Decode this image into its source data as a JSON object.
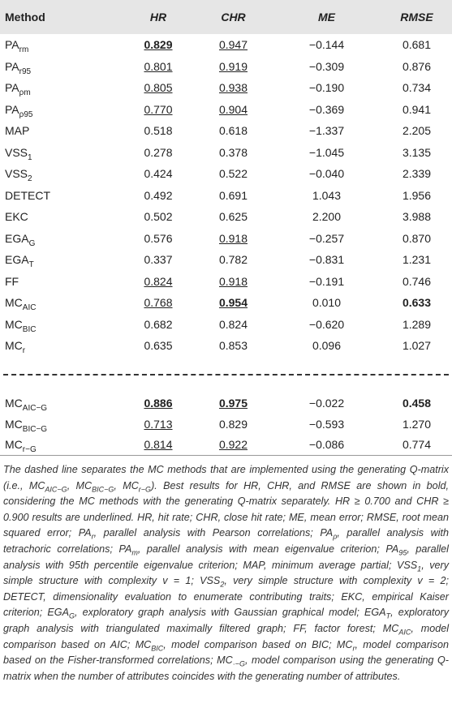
{
  "table": {
    "header": [
      "Method",
      "HR",
      "CHR",
      "ME",
      "RMSE"
    ],
    "rows": [
      {
        "method": {
          "base": "PA",
          "sub": "rm"
        },
        "cells": [
          {
            "text": "0.829",
            "bold": true,
            "underline": true
          },
          {
            "text": "0.947",
            "underline": true
          },
          {
            "text": "−0.144"
          },
          {
            "text": "0.681"
          }
        ]
      },
      {
        "method": {
          "base": "PA",
          "sub": "r95"
        },
        "cells": [
          {
            "text": "0.801",
            "underline": true
          },
          {
            "text": "0.919",
            "underline": true
          },
          {
            "text": "−0.309"
          },
          {
            "text": "0.876"
          }
        ]
      },
      {
        "method": {
          "base": "PA",
          "sub": "ρm"
        },
        "cells": [
          {
            "text": "0.805",
            "underline": true
          },
          {
            "text": "0.938",
            "underline": true
          },
          {
            "text": "−0.190"
          },
          {
            "text": "0.734"
          }
        ]
      },
      {
        "method": {
          "base": "PA",
          "sub": "ρ95"
        },
        "cells": [
          {
            "text": "0.770",
            "underline": true
          },
          {
            "text": "0.904",
            "underline": true
          },
          {
            "text": "−0.369"
          },
          {
            "text": "0.941"
          }
        ]
      },
      {
        "method": {
          "base": "MAP"
        },
        "cells": [
          {
            "text": "0.518"
          },
          {
            "text": "0.618"
          },
          {
            "text": "−1.337"
          },
          {
            "text": "2.205"
          }
        ]
      },
      {
        "method": {
          "base": "VSS",
          "sub": "1"
        },
        "cells": [
          {
            "text": "0.278"
          },
          {
            "text": "0.378"
          },
          {
            "text": "−1.045"
          },
          {
            "text": "3.135"
          }
        ]
      },
      {
        "method": {
          "base": "VSS",
          "sub": "2"
        },
        "cells": [
          {
            "text": "0.424"
          },
          {
            "text": "0.522"
          },
          {
            "text": "−0.040"
          },
          {
            "text": "2.339"
          }
        ]
      },
      {
        "method": {
          "base": "DETECT"
        },
        "cells": [
          {
            "text": "0.492"
          },
          {
            "text": "0.691"
          },
          {
            "text": "1.043"
          },
          {
            "text": "1.956"
          }
        ]
      },
      {
        "method": {
          "base": "EKC"
        },
        "cells": [
          {
            "text": "0.502"
          },
          {
            "text": "0.625"
          },
          {
            "text": "2.200"
          },
          {
            "text": "3.988"
          }
        ]
      },
      {
        "method": {
          "base": "EGA",
          "sub": "G"
        },
        "cells": [
          {
            "text": "0.576"
          },
          {
            "text": "0.918",
            "underline": true
          },
          {
            "text": "−0.257"
          },
          {
            "text": "0.870"
          }
        ]
      },
      {
        "method": {
          "base": "EGA",
          "sub": "T"
        },
        "cells": [
          {
            "text": "0.337"
          },
          {
            "text": "0.782"
          },
          {
            "text": "−0.831"
          },
          {
            "text": "1.231"
          }
        ]
      },
      {
        "method": {
          "base": "FF"
        },
        "cells": [
          {
            "text": "0.824",
            "underline": true
          },
          {
            "text": "0.918",
            "underline": true
          },
          {
            "text": "−0.191"
          },
          {
            "text": "0.746"
          }
        ]
      },
      {
        "method": {
          "base": "MC",
          "sub": "AIC"
        },
        "cells": [
          {
            "text": "0.768",
            "underline": true
          },
          {
            "text": "0.954",
            "bold": true,
            "underline": true
          },
          {
            "text": "0.010"
          },
          {
            "text": "0.633",
            "bold": true
          }
        ]
      },
      {
        "method": {
          "base": "MC",
          "sub": "BIC"
        },
        "cells": [
          {
            "text": "0.682"
          },
          {
            "text": "0.824"
          },
          {
            "text": "−0.620"
          },
          {
            "text": "1.289"
          }
        ]
      },
      {
        "method": {
          "base": "MC",
          "sub": "r"
        },
        "cells": [
          {
            "text": "0.635"
          },
          {
            "text": "0.853"
          },
          {
            "text": "0.096"
          },
          {
            "text": "1.027"
          }
        ]
      }
    ],
    "rows_generating": [
      {
        "method": {
          "base": "MC",
          "sub": "AIC−G"
        },
        "cells": [
          {
            "text": "0.886",
            "bold": true,
            "underline": true
          },
          {
            "text": "0.975",
            "bold": true,
            "underline": true
          },
          {
            "text": "−0.022"
          },
          {
            "text": "0.458",
            "bold": true
          }
        ]
      },
      {
        "method": {
          "base": "MC",
          "sub": "BIC−G"
        },
        "cells": [
          {
            "text": "0.713",
            "underline": true
          },
          {
            "text": "0.829"
          },
          {
            "text": "−0.593"
          },
          {
            "text": "1.270"
          }
        ]
      },
      {
        "method": {
          "base": "MC",
          "sub": "r−G"
        },
        "cells": [
          {
            "text": "0.814",
            "underline": true
          },
          {
            "text": "0.922",
            "underline": true
          },
          {
            "text": "−0.086"
          },
          {
            "text": "0.774"
          }
        ]
      }
    ]
  },
  "footnote": [
    {
      "t": "The dashed line separates the MC methods that are implemented using the generating Q-matrix (i.e., MC"
    },
    {
      "sub": "AIC−G"
    },
    {
      "t": ", MC"
    },
    {
      "sub": "BIC−G"
    },
    {
      "t": ", MC"
    },
    {
      "sub": "r−G"
    },
    {
      "t": "). Best results for HR, CHR, and RMSE are shown in bold, considering the MC methods with the generating Q-matrix separately. HR ≥ 0.700 and CHR ≥ 0.900 results are underlined. HR, hit rate; CHR, close hit rate; ME, mean error; RMSE, root mean squared error; PA"
    },
    {
      "sub": "r"
    },
    {
      "t": ", parallel analysis with Pearson correlations; PA"
    },
    {
      "sub": "ρ"
    },
    {
      "t": ", parallel analysis with tetrachoric correlations; PA"
    },
    {
      "sub": "m"
    },
    {
      "t": ", parallel analysis with mean eigenvalue criterion; PA"
    },
    {
      "sub": "95"
    },
    {
      "t": ", parallel analysis with 95th percentile eigenvalue criterion; MAP, minimum average partial; VSS"
    },
    {
      "sub": "1"
    },
    {
      "t": ", very simple structure with complexity v = 1; VSS"
    },
    {
      "sub": "2"
    },
    {
      "t": ", very simple structure with complexity v = 2; DETECT, dimensionality evaluation to enumerate contributing traits; EKC, empirical Kaiser criterion; EGA"
    },
    {
      "sub": "G"
    },
    {
      "t": ", exploratory graph analysis with Gaussian graphical model; EGA"
    },
    {
      "sub": "T"
    },
    {
      "t": ", exploratory graph analysis with triangulated maximally filtered graph; FF, factor forest; MC"
    },
    {
      "sub": "AIC"
    },
    {
      "t": ", model comparison based on AIC; MC"
    },
    {
      "sub": "BIC"
    },
    {
      "t": ", model comparison based on BIC; MC"
    },
    {
      "sub": "r"
    },
    {
      "t": ", model comparison based on the Fisher-transformed correlations; MC"
    },
    {
      "sub": "·−G"
    },
    {
      "t": ", model comparison using the generating Q-matrix when the number of attributes coincides with the generating number of attributes."
    }
  ]
}
